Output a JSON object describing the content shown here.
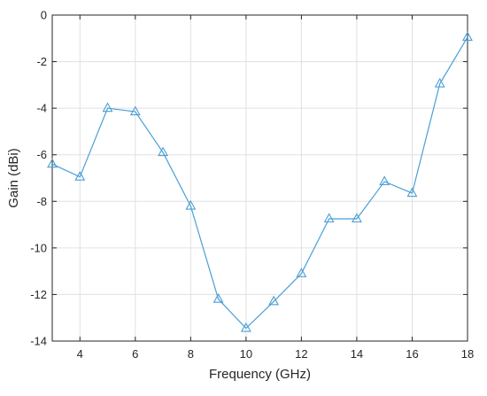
{
  "chart_data": {
    "type": "line",
    "title": "",
    "xlabel": "Frequency (GHz)",
    "ylabel": "Gain (dBi)",
    "xlim": [
      3,
      18
    ],
    "ylim": [
      -14,
      0
    ],
    "xticks": [
      4,
      6,
      8,
      10,
      12,
      14,
      16,
      18
    ],
    "yticks": [
      0,
      -2,
      -4,
      -6,
      -8,
      -10,
      -12,
      -14
    ],
    "grid": true,
    "series": [
      {
        "color": "#4a9fd6",
        "marker": "triangle",
        "x": [
          3,
          4,
          5,
          6,
          7,
          8,
          9,
          10,
          11,
          12,
          13,
          14,
          15,
          16,
          17,
          18
        ],
        "y": [
          -6.4,
          -6.95,
          -4.0,
          -4.15,
          -5.9,
          -8.2,
          -12.2,
          -13.45,
          -12.3,
          -11.1,
          -8.75,
          -8.75,
          -7.15,
          -7.65,
          -2.95,
          -0.95
        ]
      }
    ]
  }
}
